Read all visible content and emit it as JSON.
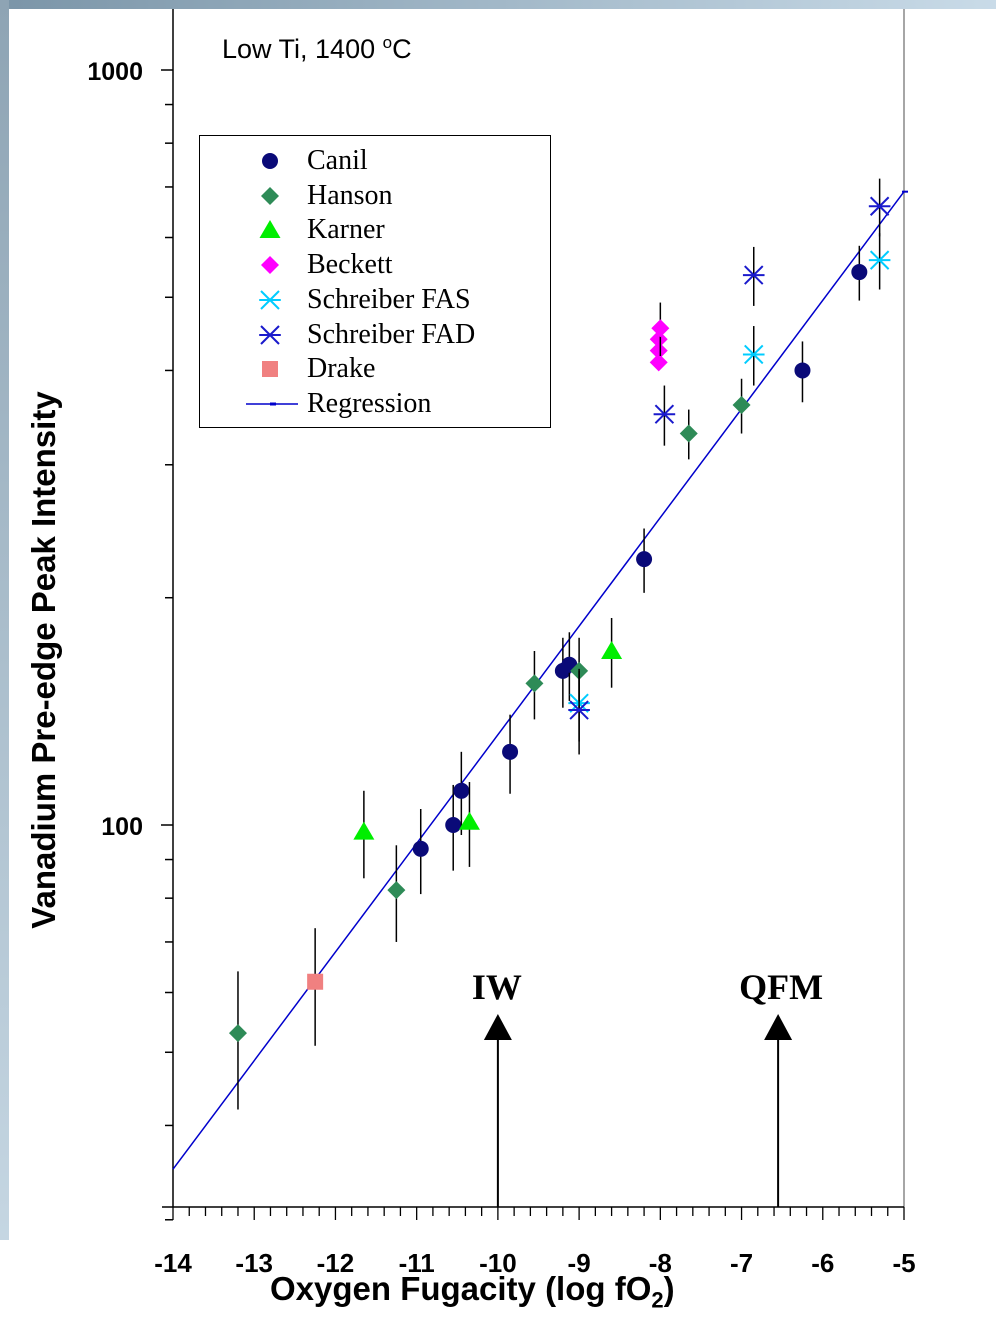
{
  "chart_data": {
    "type": "scatter",
    "annotation": "Low Ti, 1400 ",
    "annotation_unit_sup": "o",
    "annotation_unit": "C",
    "xlabel": "Oxygen Fugacity (log fO",
    "xlabel_sub": "2",
    "xlabel_end": ")",
    "ylabel": "Vanadium Pre-edge Peak Intensity",
    "x_ticks": [
      "-14",
      "-13",
      "-12",
      "-11",
      "-10",
      "-9",
      "-8",
      "-7",
      "-6",
      "-5"
    ],
    "y_ticks": [
      "100",
      "1000"
    ],
    "xlim": [
      -14,
      -5
    ],
    "ylim": [
      30,
      1060
    ],
    "yscale": "log",
    "grid": false,
    "legend_position": "top-left",
    "reference_arrows": [
      {
        "label": "IW",
        "x": -10
      },
      {
        "label": "QFM",
        "x": -6.55
      }
    ],
    "series": [
      {
        "name": "Canil",
        "marker": "circle",
        "color": "#0a0a78",
        "points": [
          {
            "x": -10.95,
            "y": 93,
            "err": 12
          },
          {
            "x": -10.55,
            "y": 100,
            "err": 13
          },
          {
            "x": -10.45,
            "y": 111,
            "err": 14
          },
          {
            "x": -9.85,
            "y": 125,
            "err": 15
          },
          {
            "x": -9.2,
            "y": 160,
            "err": 17
          },
          {
            "x": -9.12,
            "y": 163,
            "err": 17
          },
          {
            "x": -8.2,
            "y": 225,
            "err": 22
          },
          {
            "x": -6.25,
            "y": 400,
            "err": 37
          },
          {
            "x": -5.55,
            "y": 540,
            "err": 45
          }
        ]
      },
      {
        "name": "Hanson",
        "marker": "diamond",
        "color": "#2e8b57",
        "points": [
          {
            "x": -13.2,
            "y": 53,
            "err": 11
          },
          {
            "x": -11.25,
            "y": 82,
            "err": 12
          },
          {
            "x": -9.55,
            "y": 154,
            "err": 16
          },
          {
            "x": -9.0,
            "y": 160,
            "err": 17
          },
          {
            "x": -7.65,
            "y": 330,
            "err": 25
          },
          {
            "x": -7.0,
            "y": 360,
            "err": 30
          }
        ]
      },
      {
        "name": "Karner",
        "marker": "triangle",
        "color": "#00ee00",
        "points": [
          {
            "x": -11.65,
            "y": 98,
            "err": 13
          },
          {
            "x": -10.35,
            "y": 101,
            "err": 13
          },
          {
            "x": -8.6,
            "y": 170,
            "err": 18
          }
        ]
      },
      {
        "name": "Beckett",
        "marker": "diamond",
        "color": "#ff00ff",
        "points": [
          {
            "x": -8.02,
            "y": 410,
            "err": 0
          },
          {
            "x": -8.02,
            "y": 425,
            "err": 0
          },
          {
            "x": -8.02,
            "y": 440,
            "err": 0
          },
          {
            "x": -8.0,
            "y": 455,
            "err": 37
          }
        ]
      },
      {
        "name": "Schreiber FAS",
        "marker": "asterisk",
        "color": "#00ccff",
        "points": [
          {
            "x": -9.0,
            "y": 145,
            "err": 16
          },
          {
            "x": -6.85,
            "y": 420,
            "err": 38
          },
          {
            "x": -5.3,
            "y": 560,
            "err": 48
          }
        ]
      },
      {
        "name": "Schreiber FAD",
        "marker": "asterisk",
        "color": "#1a1acc",
        "points": [
          {
            "x": -9.0,
            "y": 142,
            "err": 18
          },
          {
            "x": -7.95,
            "y": 350,
            "err": 32
          },
          {
            "x": -6.85,
            "y": 535,
            "err": 48
          },
          {
            "x": -5.3,
            "y": 660,
            "err": 58
          }
        ]
      },
      {
        "name": "Drake",
        "marker": "square",
        "color": "#f08080",
        "points": [
          {
            "x": -12.25,
            "y": 62,
            "err": 11
          }
        ]
      },
      {
        "name": "Regression",
        "marker": "line",
        "color": "#0000cc",
        "line": [
          {
            "x": -14.0,
            "y": 35
          },
          {
            "x": -5.0,
            "y": 690
          }
        ]
      }
    ]
  }
}
